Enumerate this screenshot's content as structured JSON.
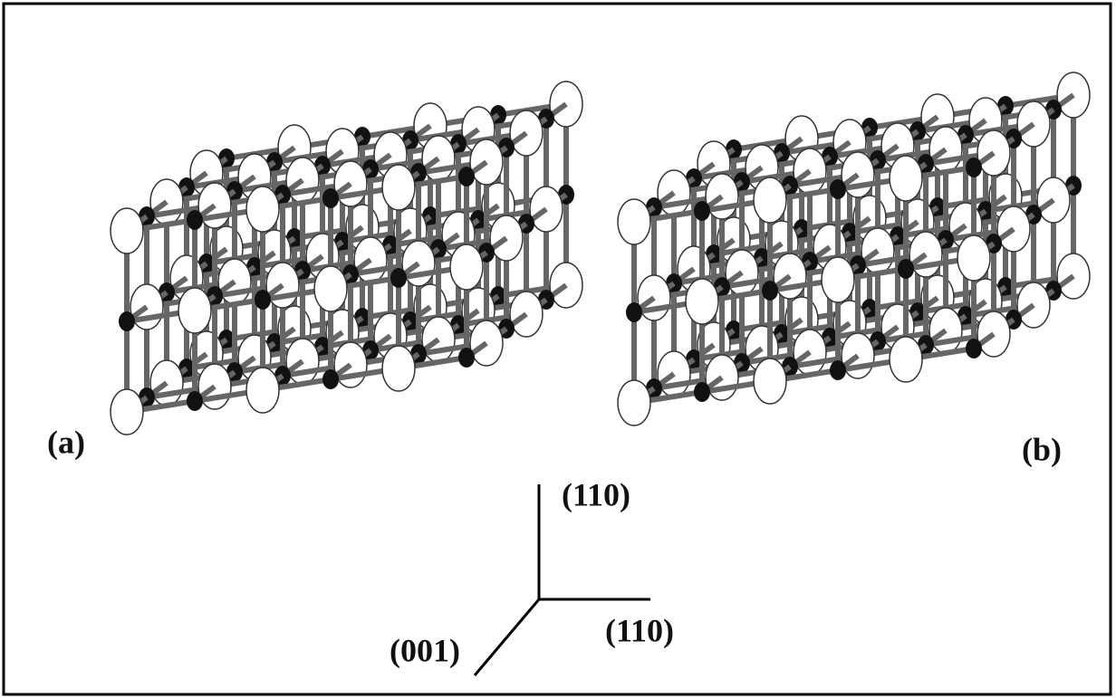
{
  "panels": [
    {
      "label": "(a)"
    },
    {
      "label": "(b)"
    }
  ],
  "axes": [
    {
      "label": "(110)"
    },
    {
      "label": "(110)"
    },
    {
      "label": "(001)"
    }
  ]
}
